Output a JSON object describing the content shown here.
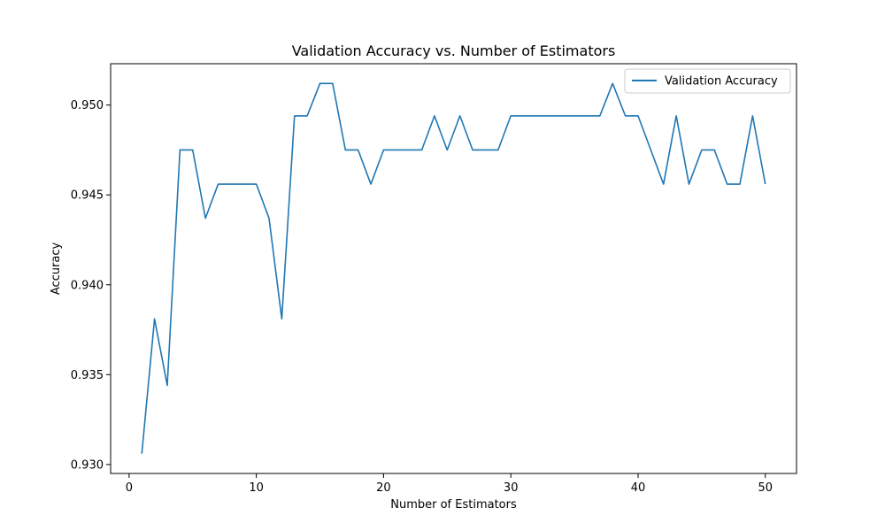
{
  "chart_data": {
    "type": "line",
    "title": "Validation Accuracy vs. Number of Estimators",
    "xlabel": "Number of Estimators",
    "ylabel": "Accuracy",
    "xlim": [
      -1.45,
      52.45
    ],
    "ylim": [
      0.9295,
      0.9523
    ],
    "x_ticks": [
      0,
      10,
      20,
      30,
      40,
      50
    ],
    "y_ticks": [
      0.93,
      0.935,
      0.94,
      0.945,
      0.95
    ],
    "x_tick_labels": [
      "0",
      "10",
      "20",
      "30",
      "40",
      "50"
    ],
    "y_tick_labels": [
      "0.930",
      "0.935",
      "0.940",
      "0.945",
      "0.950"
    ],
    "grid": false,
    "legend_position": "top-right",
    "series": [
      {
        "name": "Validation Accuracy",
        "color": "#1f77b4",
        "x": [
          1,
          2,
          3,
          4,
          5,
          6,
          7,
          8,
          9,
          10,
          11,
          12,
          13,
          14,
          15,
          16,
          17,
          18,
          19,
          20,
          21,
          22,
          23,
          24,
          25,
          26,
          27,
          28,
          29,
          30,
          31,
          32,
          33,
          34,
          35,
          36,
          37,
          38,
          39,
          40,
          41,
          42,
          43,
          44,
          45,
          46,
          47,
          48,
          49,
          50
        ],
        "values": [
          0.9306,
          0.9381,
          0.9344,
          0.9475,
          0.9475,
          0.9437,
          0.9456,
          0.9456,
          0.9456,
          0.9456,
          0.9437,
          0.9381,
          0.9494,
          0.9494,
          0.9512,
          0.9512,
          0.9475,
          0.9475,
          0.9456,
          0.9475,
          0.9475,
          0.9475,
          0.9475,
          0.9494,
          0.9475,
          0.9494,
          0.9475,
          0.9475,
          0.9475,
          0.9494,
          0.9494,
          0.9494,
          0.9494,
          0.9494,
          0.9494,
          0.9494,
          0.9494,
          0.9512,
          0.9494,
          0.9494,
          0.9475,
          0.9456,
          0.9494,
          0.9456,
          0.9475,
          0.9475,
          0.9456,
          0.9456,
          0.9494,
          0.9456
        ]
      }
    ]
  }
}
